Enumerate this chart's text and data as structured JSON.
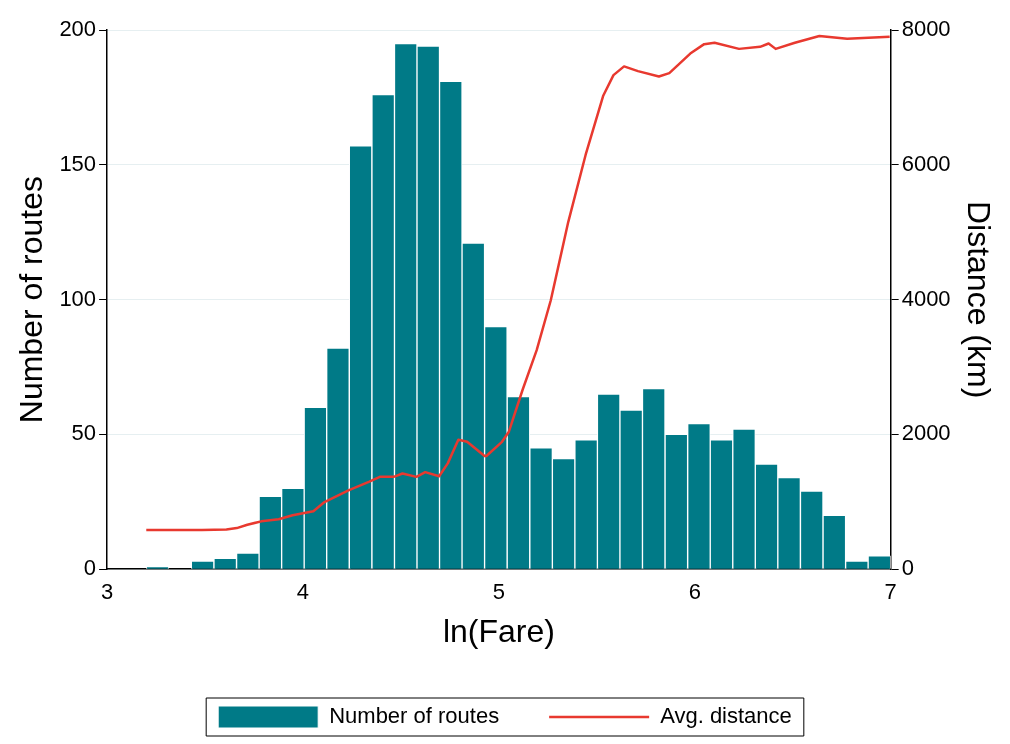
{
  "chart_data": {
    "type": "histogram",
    "xlabel": "ln(Fare)",
    "ylabel": "Number of routes",
    "y2label": "Distance (km)",
    "bins": [
      3.2,
      3.315,
      3.43,
      3.545,
      3.661,
      3.776,
      3.891,
      4.006,
      4.121,
      4.236,
      4.352,
      4.467,
      4.582,
      4.697,
      4.812,
      4.927,
      5.042,
      5.158,
      5.273,
      5.388,
      5.503,
      5.618,
      5.733,
      5.848,
      5.964,
      6.079,
      6.194,
      6.309,
      6.424,
      6.539,
      6.655,
      6.77,
      6.885,
      7.0
    ],
    "series": [
      {
        "name": "Number of routes",
        "color": "#007a87",
        "values": [
          1,
          0,
          3,
          4,
          6,
          27,
          30,
          60,
          82,
          157,
          176,
          195,
          194,
          181,
          121,
          90,
          64,
          45,
          41,
          48,
          65,
          59,
          67,
          50,
          54,
          48,
          52,
          39,
          34,
          29,
          20,
          3,
          5
        ]
      },
      {
        "name": "Avg. distance",
        "type": "line",
        "axis": "y2",
        "color": "#e8392f",
        "x": [
          3.2,
          3.484,
          3.609,
          3.662,
          3.716,
          3.787,
          3.876,
          3.947,
          4.053,
          4.107,
          4.232,
          4.339,
          4.392,
          4.463,
          4.508,
          4.579,
          4.624,
          4.695,
          4.739,
          4.793,
          4.838,
          4.927,
          4.936,
          5.016,
          5.051,
          5.122,
          5.193,
          5.265,
          5.354,
          5.443,
          5.532,
          5.585,
          5.639,
          5.71,
          5.817,
          5.87,
          5.977,
          6.048,
          6.101,
          6.226,
          6.333,
          6.377,
          6.413,
          6.511,
          6.636,
          6.778,
          6.995
        ],
        "values": [
          580,
          580,
          590,
          610,
          660,
          710,
          740,
          800,
          860,
          990,
          1170,
          1300,
          1370,
          1370,
          1420,
          1370,
          1440,
          1380,
          1570,
          1920,
          1890,
          1680,
          1680,
          1890,
          2040,
          2670,
          3250,
          3990,
          5150,
          6150,
          7020,
          7330,
          7460,
          7390,
          7310,
          7360,
          7650,
          7790,
          7810,
          7720,
          7750,
          7800,
          7720,
          7810,
          7910,
          7870,
          7900
        ]
      }
    ],
    "xlim": [
      3,
      7
    ],
    "xticks": [
      3,
      4,
      5,
      6,
      7
    ],
    "ylim": [
      0,
      200
    ],
    "yticks": [
      0,
      50,
      100,
      150,
      200
    ],
    "y2lim": [
      0,
      8000
    ],
    "y2ticks": [
      0,
      2000,
      4000,
      6000,
      8000
    ],
    "grid": "y",
    "legend": "bottom",
    "marker": "none",
    "line_style": "solid"
  }
}
